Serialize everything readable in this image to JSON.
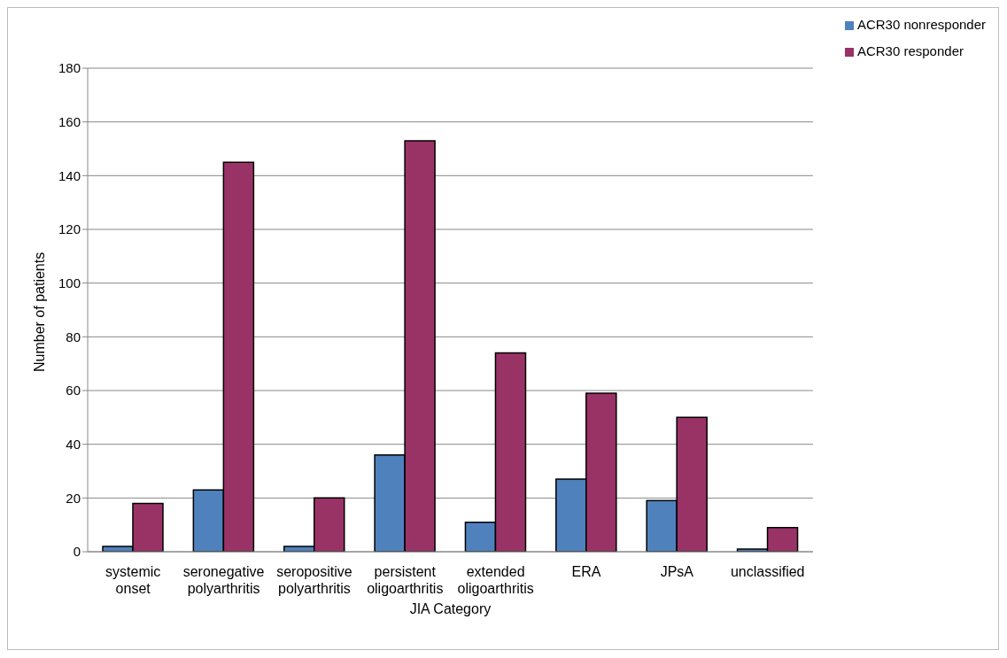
{
  "chart_data": {
    "type": "bar",
    "xlabel": "JIA Category",
    "ylabel": "Number of patients",
    "categories": [
      "systemic onset",
      "seronegative polyarthritis",
      "seropositive polyarthritis",
      "persistent oligoarthritis",
      "extended oligoarthritis",
      "ERA",
      "JPsA",
      "unclassified"
    ],
    "series": [
      {
        "name": "ACR30 nonresponder",
        "color": "#4f81bd",
        "values": [
          2,
          23,
          2,
          36,
          11,
          27,
          19,
          1
        ]
      },
      {
        "name": "ACR30 responder",
        "color": "#993366",
        "values": [
          18,
          145,
          20,
          153,
          74,
          59,
          50,
          9
        ]
      }
    ],
    "ylim": [
      0,
      180
    ],
    "yticks": [
      0,
      20,
      40,
      60,
      80,
      100,
      120,
      140,
      160,
      180
    ],
    "grid": "y",
    "legend": "top right"
  }
}
